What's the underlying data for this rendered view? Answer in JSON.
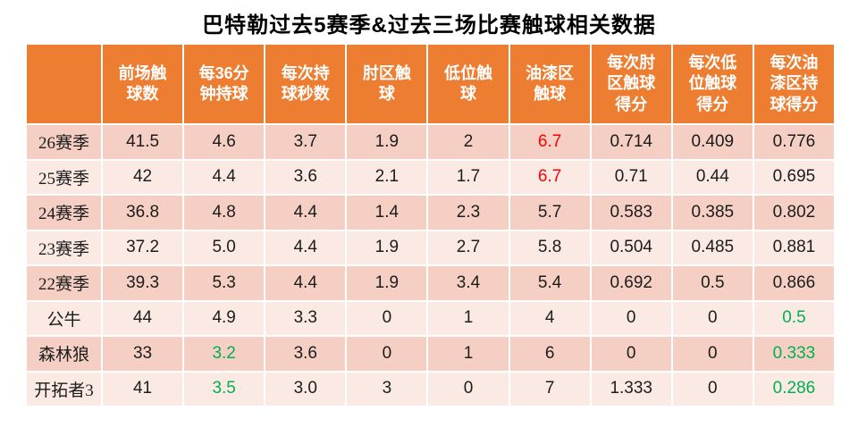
{
  "title": "巴特勒过去5赛季&过去三场比赛触球相关数据",
  "colors": {
    "header_bg": "#ED7D31",
    "row_dark": "#F5CFC3",
    "row_light": "#FBEAE3",
    "highlight_red": "#FF0000",
    "highlight_green": "#00B050"
  },
  "chart_data": {
    "type": "table",
    "title": "巴特勒过去5赛季&过去三场比赛触球相关数据",
    "columns": [
      "",
      "前场触\n球数",
      "每36分\n钟持球",
      "每次持\n球秒数",
      "肘区触\n球",
      "低位触\n球",
      "油漆区\n触球",
      "每次肘\n区触球\n得分",
      "每次低\n位触球\n得分",
      "每次油\n漆区持\n球得分"
    ],
    "rows": [
      {
        "label": "26赛季",
        "cells": [
          {
            "t": "41.5"
          },
          {
            "t": "4.6"
          },
          {
            "t": "3.7"
          },
          {
            "t": "1.9"
          },
          {
            "t": "2"
          },
          {
            "t": "6.7",
            "c": "red"
          },
          {
            "t": "0.714"
          },
          {
            "t": "0.409"
          },
          {
            "t": "0.776"
          }
        ]
      },
      {
        "label": "25赛季",
        "cells": [
          {
            "t": "42"
          },
          {
            "t": "4.4"
          },
          {
            "t": "3.6"
          },
          {
            "t": "2.1"
          },
          {
            "t": "1.7"
          },
          {
            "t": "6.7",
            "c": "red"
          },
          {
            "t": "0.71"
          },
          {
            "t": "0.44"
          },
          {
            "t": "0.695"
          }
        ]
      },
      {
        "label": "24赛季",
        "cells": [
          {
            "t": "36.8"
          },
          {
            "t": "4.8"
          },
          {
            "t": "4.4"
          },
          {
            "t": "1.4"
          },
          {
            "t": "2.3"
          },
          {
            "t": "5.7"
          },
          {
            "t": "0.583"
          },
          {
            "t": "0.385"
          },
          {
            "t": "0.802"
          }
        ]
      },
      {
        "label": "23赛季",
        "cells": [
          {
            "t": "37.2"
          },
          {
            "t": "5.0"
          },
          {
            "t": "4.4"
          },
          {
            "t": "1.9"
          },
          {
            "t": "2.7"
          },
          {
            "t": "5.8"
          },
          {
            "t": "0.504"
          },
          {
            "t": "0.485"
          },
          {
            "t": "0.881"
          }
        ]
      },
      {
        "label": "22赛季",
        "cells": [
          {
            "t": "39.3"
          },
          {
            "t": "5.3"
          },
          {
            "t": "4.4"
          },
          {
            "t": "1.9"
          },
          {
            "t": "3.4"
          },
          {
            "t": "5.4"
          },
          {
            "t": "0.692"
          },
          {
            "t": "0.5"
          },
          {
            "t": "0.866"
          }
        ]
      },
      {
        "label": "公牛",
        "cells": [
          {
            "t": "44"
          },
          {
            "t": "4.9"
          },
          {
            "t": "3.3"
          },
          {
            "t": "0"
          },
          {
            "t": "1"
          },
          {
            "t": "4"
          },
          {
            "t": "0"
          },
          {
            "t": "0"
          },
          {
            "t": "0.5",
            "c": "green"
          }
        ]
      },
      {
        "label": "森林狼",
        "cells": [
          {
            "t": "33"
          },
          {
            "t": "3.2",
            "c": "green"
          },
          {
            "t": "3.6"
          },
          {
            "t": "0"
          },
          {
            "t": "1"
          },
          {
            "t": "6"
          },
          {
            "t": "0"
          },
          {
            "t": "0"
          },
          {
            "t": "0.333",
            "c": "green"
          }
        ]
      },
      {
        "label": "开拓者3",
        "cells": [
          {
            "t": "41"
          },
          {
            "t": "3.5",
            "c": "green"
          },
          {
            "t": "3.0"
          },
          {
            "t": "3"
          },
          {
            "t": "0"
          },
          {
            "t": "7"
          },
          {
            "t": "1.333"
          },
          {
            "t": "0"
          },
          {
            "t": "0.286",
            "c": "green"
          }
        ]
      }
    ],
    "layout": {
      "banding": "alternating rows starting dark",
      "grid": "white 2px solid",
      "legend": "none"
    }
  }
}
